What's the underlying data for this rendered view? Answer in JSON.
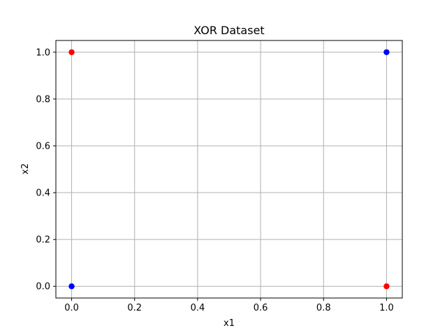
{
  "chart_data": {
    "type": "scatter",
    "title": "XOR Dataset",
    "xlabel": "x1",
    "ylabel": "x2",
    "xlim": [
      -0.05,
      1.05
    ],
    "ylim": [
      -0.05,
      1.05
    ],
    "xticks": [
      "0.0",
      "0.2",
      "0.4",
      "0.6",
      "0.8",
      "1.0"
    ],
    "yticks": [
      "0.0",
      "0.2",
      "0.4",
      "0.6",
      "0.8",
      "1.0"
    ],
    "grid": true,
    "points": [
      {
        "x": 0,
        "y": 0,
        "color": "#0000ff"
      },
      {
        "x": 0,
        "y": 1,
        "color": "#ff0000"
      },
      {
        "x": 1,
        "y": 0,
        "color": "#ff0000"
      },
      {
        "x": 1,
        "y": 1,
        "color": "#0000ff"
      }
    ]
  }
}
